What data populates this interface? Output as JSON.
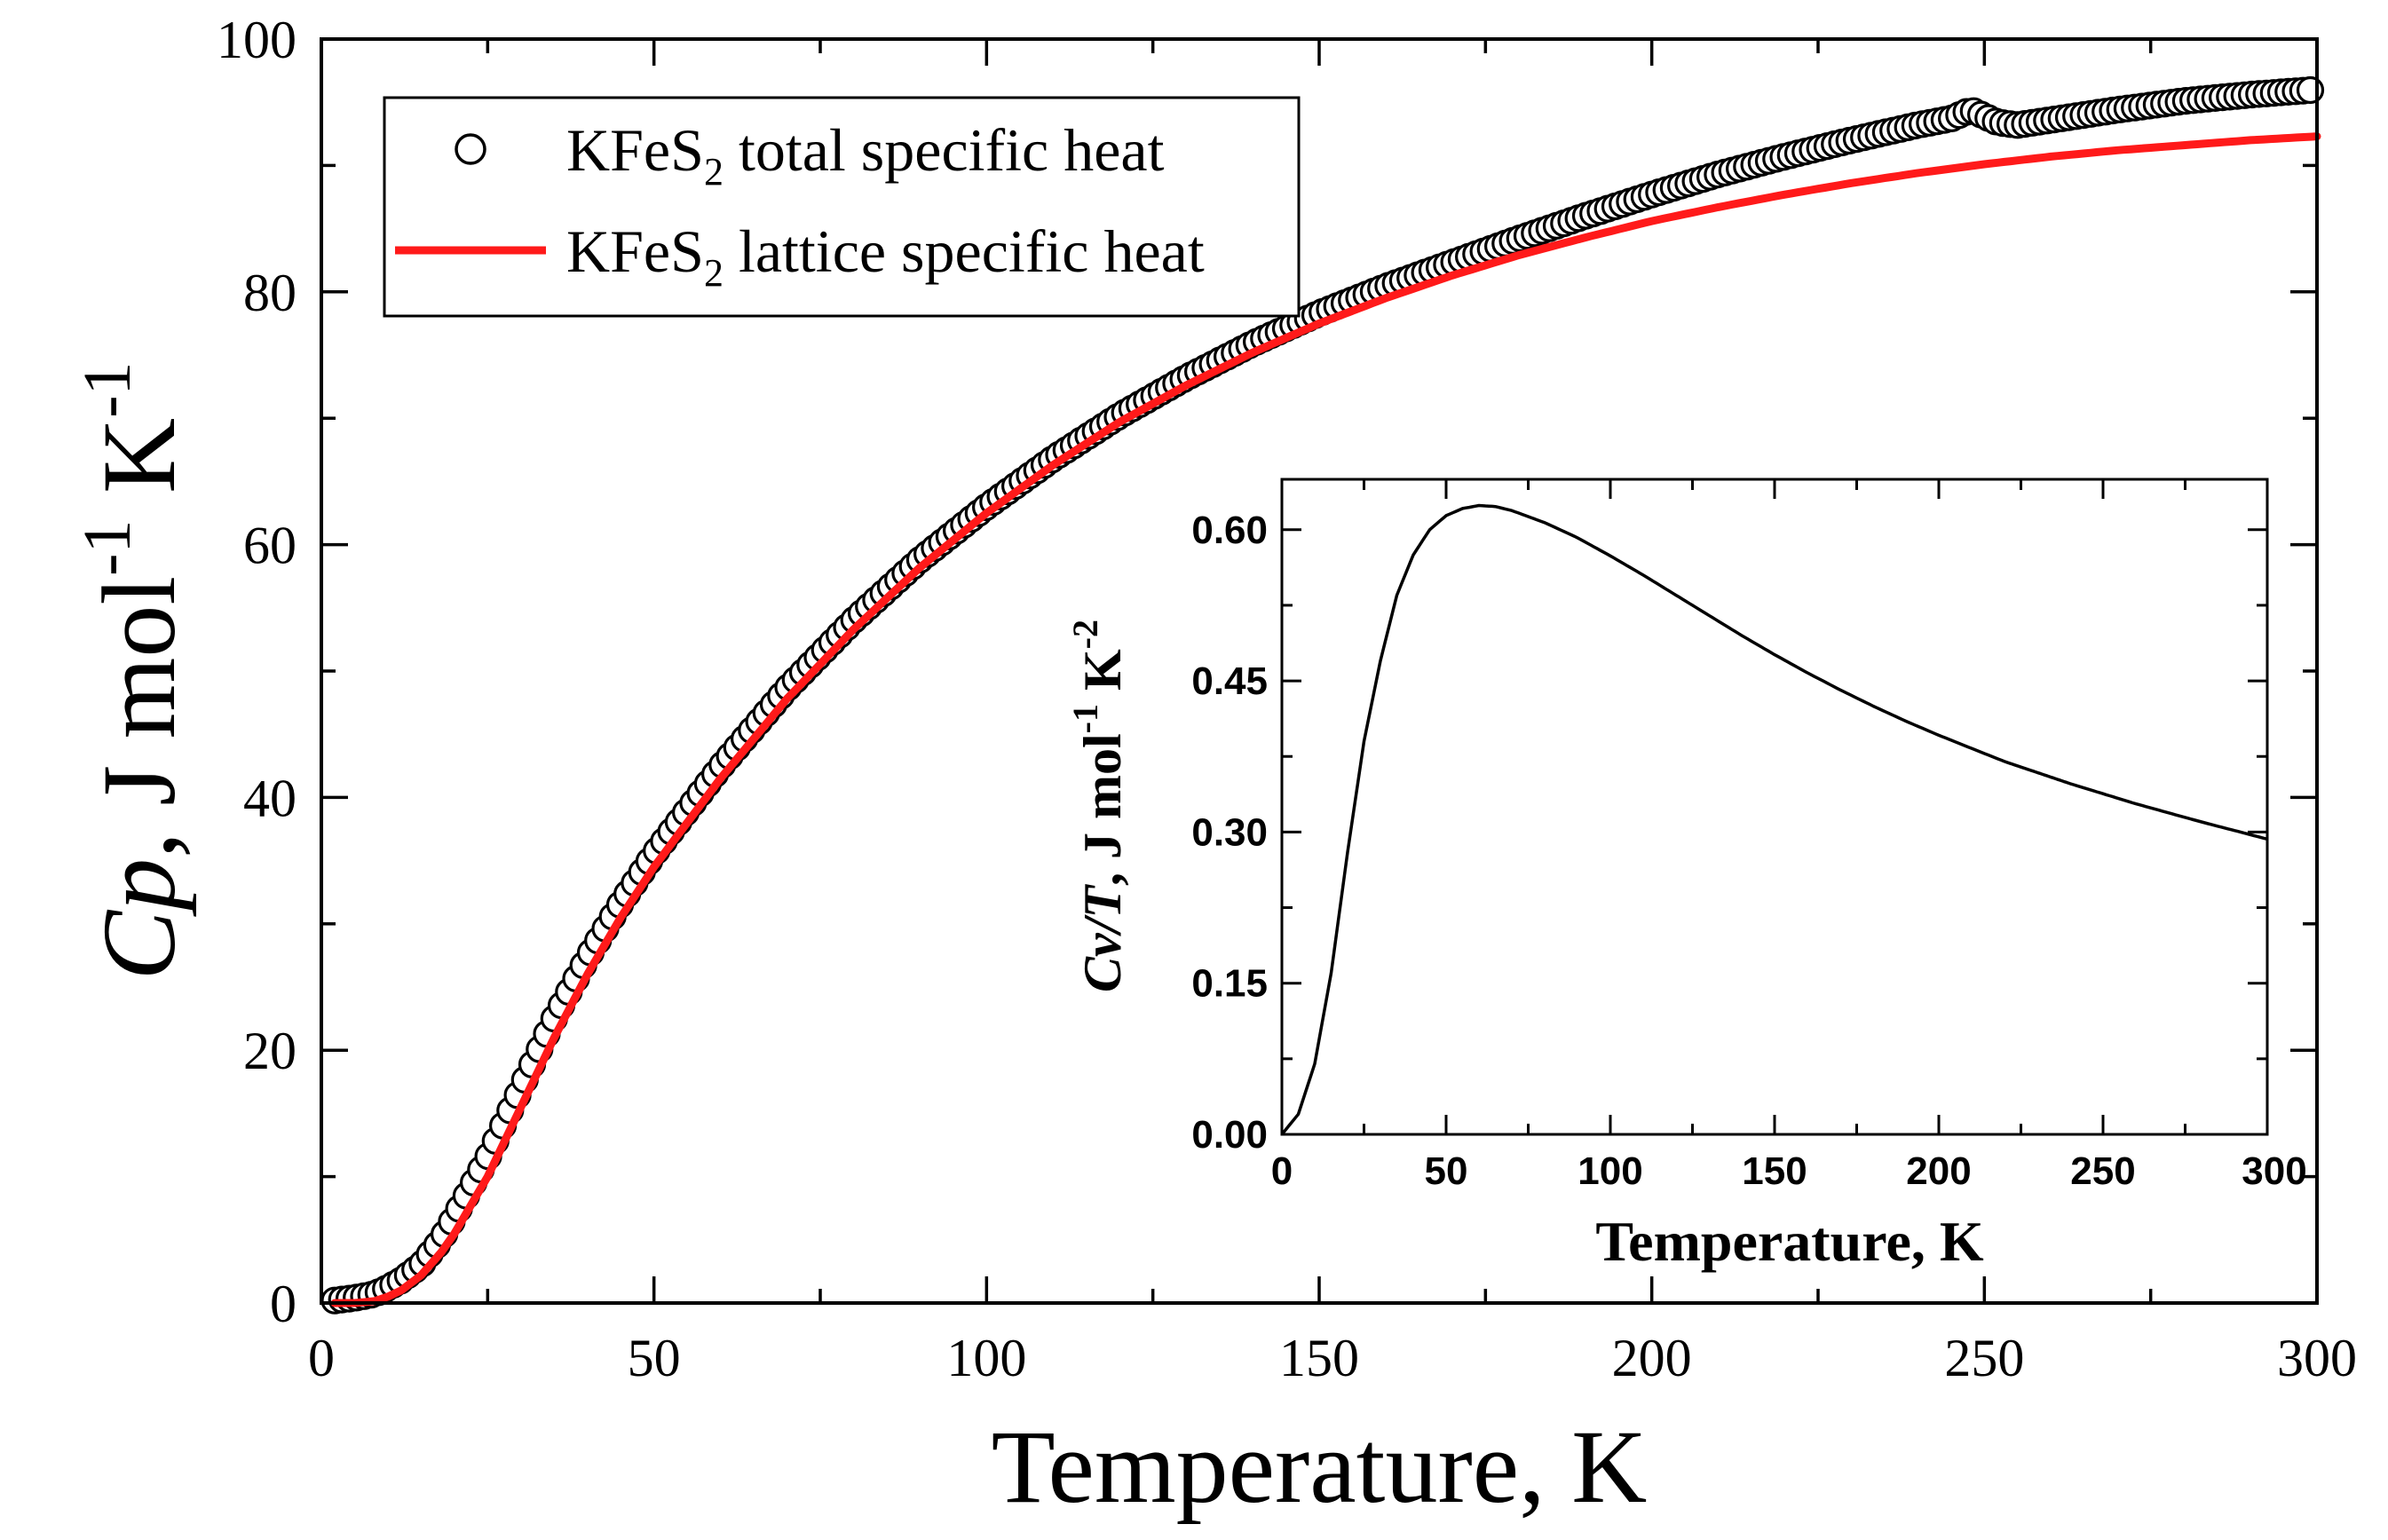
{
  "chart_data": [
    {
      "id": "main",
      "type": "scatter",
      "title": "",
      "xlabel": "Temperature, K",
      "ylabel": {
        "symbol": "Cp",
        "unit_prefix": ", J mol",
        "exp1": "-1",
        "mid": " K",
        "exp2": "-1"
      },
      "xlim": [
        0,
        300
      ],
      "ylim": [
        0,
        100
      ],
      "xticks": [
        0,
        50,
        100,
        150,
        200,
        250,
        300
      ],
      "yticks": [
        0,
        20,
        40,
        60,
        80,
        100
      ],
      "xtick_labels": [
        "0",
        "50",
        "100",
        "150",
        "200",
        "250",
        "300"
      ],
      "ytick_labels": [
        "0",
        "20",
        "40",
        "60",
        "80",
        "100"
      ],
      "grid": false,
      "legend_position": "top-left",
      "series": [
        {
          "name": "KFeS2 total specific heat",
          "legend_main": "KFeS",
          "legend_sub": "2",
          "legend_rest": " total specific heat",
          "style": "open-circles",
          "color": "#000000",
          "x": [
            2,
            5,
            8,
            10,
            12,
            15,
            18,
            20,
            25,
            30,
            35,
            40,
            45,
            50,
            60,
            70,
            80,
            90,
            100,
            110,
            120,
            130,
            140,
            150,
            160,
            170,
            180,
            190,
            200,
            210,
            220,
            230,
            240,
            245,
            248,
            250,
            252,
            255,
            260,
            270,
            280,
            290,
            300
          ],
          "y": [
            0.2,
            0.4,
            0.7,
            1.2,
            1.8,
            3.0,
            5.0,
            6.8,
            11.5,
            17.0,
            22.5,
            27.3,
            31.6,
            35.5,
            42.4,
            48.6,
            54.0,
            58.8,
            63.0,
            66.8,
            70.2,
            73.2,
            75.9,
            78.3,
            80.4,
            82.3,
            84.2,
            86.0,
            87.7,
            89.3,
            90.7,
            92.0,
            93.2,
            93.7,
            94.4,
            93.9,
            93.4,
            93.2,
            93.6,
            94.4,
            95.1,
            95.6,
            96.0
          ]
        },
        {
          "name": "KFeS2 lattice specific heat",
          "legend_main": "KFeS",
          "legend_sub": "2",
          "legend_rest": " lattice specific heat",
          "style": "line",
          "color": "#ff1a1a",
          "x": [
            2,
            5,
            8,
            10,
            12,
            15,
            18,
            20,
            25,
            30,
            35,
            40,
            45,
            50,
            60,
            70,
            80,
            90,
            100,
            110,
            120,
            130,
            140,
            150,
            160,
            170,
            180,
            190,
            200,
            210,
            220,
            230,
            240,
            250,
            260,
            270,
            280,
            290,
            300
          ],
          "y": [
            0.0,
            0.0,
            0.15,
            0.5,
            1.0,
            2.2,
            4.0,
            5.5,
            10.0,
            15.5,
            21.0,
            26.0,
            30.5,
            34.5,
            41.5,
            47.8,
            53.3,
            58.2,
            62.5,
            66.3,
            69.7,
            72.6,
            75.2,
            77.5,
            79.5,
            81.3,
            82.9,
            84.3,
            85.6,
            86.7,
            87.7,
            88.6,
            89.4,
            90.1,
            90.7,
            91.2,
            91.6,
            92.0,
            92.3
          ]
        }
      ]
    },
    {
      "id": "inset",
      "type": "line",
      "title": "",
      "xlabel": "Temperature, K",
      "ylabel": {
        "symbol": "Cv/T",
        "unit_prefix": ", J mol",
        "exp1": "-1",
        "mid": " K",
        "exp2": "-2"
      },
      "xlim": [
        0,
        300
      ],
      "ylim": [
        0,
        0.65
      ],
      "xticks": [
        0,
        50,
        100,
        150,
        200,
        250,
        300
      ],
      "yticks": [
        0,
        0.15,
        0.3,
        0.45,
        0.6
      ],
      "xtick_labels": [
        "0",
        "50",
        "100",
        "150",
        "200",
        "250",
        "300"
      ],
      "ytick_labels": [
        "0.00",
        "0.15",
        "0.30",
        "0.45",
        "0.60"
      ],
      "grid": false,
      "series": [
        {
          "name": "Cv/T",
          "color": "#000000",
          "x": [
            0,
            5,
            10,
            15,
            20,
            25,
            30,
            35,
            40,
            45,
            50,
            55,
            60,
            65,
            70,
            80,
            90,
            100,
            110,
            120,
            130,
            140,
            150,
            160,
            170,
            180,
            190,
            200,
            220,
            240,
            260,
            280,
            300
          ],
          "y": [
            0.0,
            0.02,
            0.07,
            0.16,
            0.28,
            0.39,
            0.47,
            0.535,
            0.575,
            0.6,
            0.614,
            0.621,
            0.624,
            0.623,
            0.619,
            0.607,
            0.592,
            0.574,
            0.555,
            0.535,
            0.515,
            0.495,
            0.476,
            0.458,
            0.441,
            0.425,
            0.41,
            0.396,
            0.37,
            0.348,
            0.328,
            0.31,
            0.293
          ]
        }
      ]
    }
  ]
}
